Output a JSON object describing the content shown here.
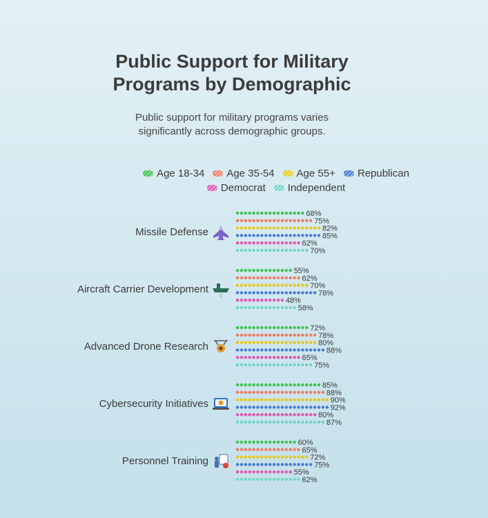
{
  "chart_data": {
    "type": "bar",
    "title": "Public Support for Military\nPrograms by Demographic",
    "subtitle": "Public support for military programs varies\nsignificantly across demographic groups.",
    "categories": [
      "Missile Defense",
      "Aircraft Carrier Development",
      "Advanced Drone Research",
      "Cybersecurity Initiatives",
      "Personnel Training"
    ],
    "category_icons": [
      "fighter-jet-icon",
      "aircraft-carrier-icon",
      "drone-icon",
      "laptop-shield-icon",
      "trainer-icon"
    ],
    "value_suffix": "%",
    "xlim": [
      0,
      100
    ],
    "legend_position": "top",
    "grid": false,
    "series": [
      {
        "name": "Age 18-34",
        "color": "#3cc24d",
        "values": [
          68,
          55,
          72,
          85,
          60
        ]
      },
      {
        "name": "Age 35-54",
        "color": "#ef7b60",
        "values": [
          75,
          62,
          78,
          88,
          65
        ]
      },
      {
        "name": "Age 55+",
        "color": "#e6c81c",
        "values": [
          82,
          70,
          80,
          90,
          72
        ]
      },
      {
        "name": "Republican",
        "color": "#4678d6",
        "values": [
          85,
          78,
          88,
          92,
          75
        ]
      },
      {
        "name": "Democrat",
        "color": "#e055b0",
        "values": [
          62,
          48,
          65,
          80,
          55
        ]
      },
      {
        "name": "Independent",
        "color": "#6fd6c6",
        "values": [
          70,
          58,
          75,
          87,
          62
        ]
      }
    ]
  }
}
